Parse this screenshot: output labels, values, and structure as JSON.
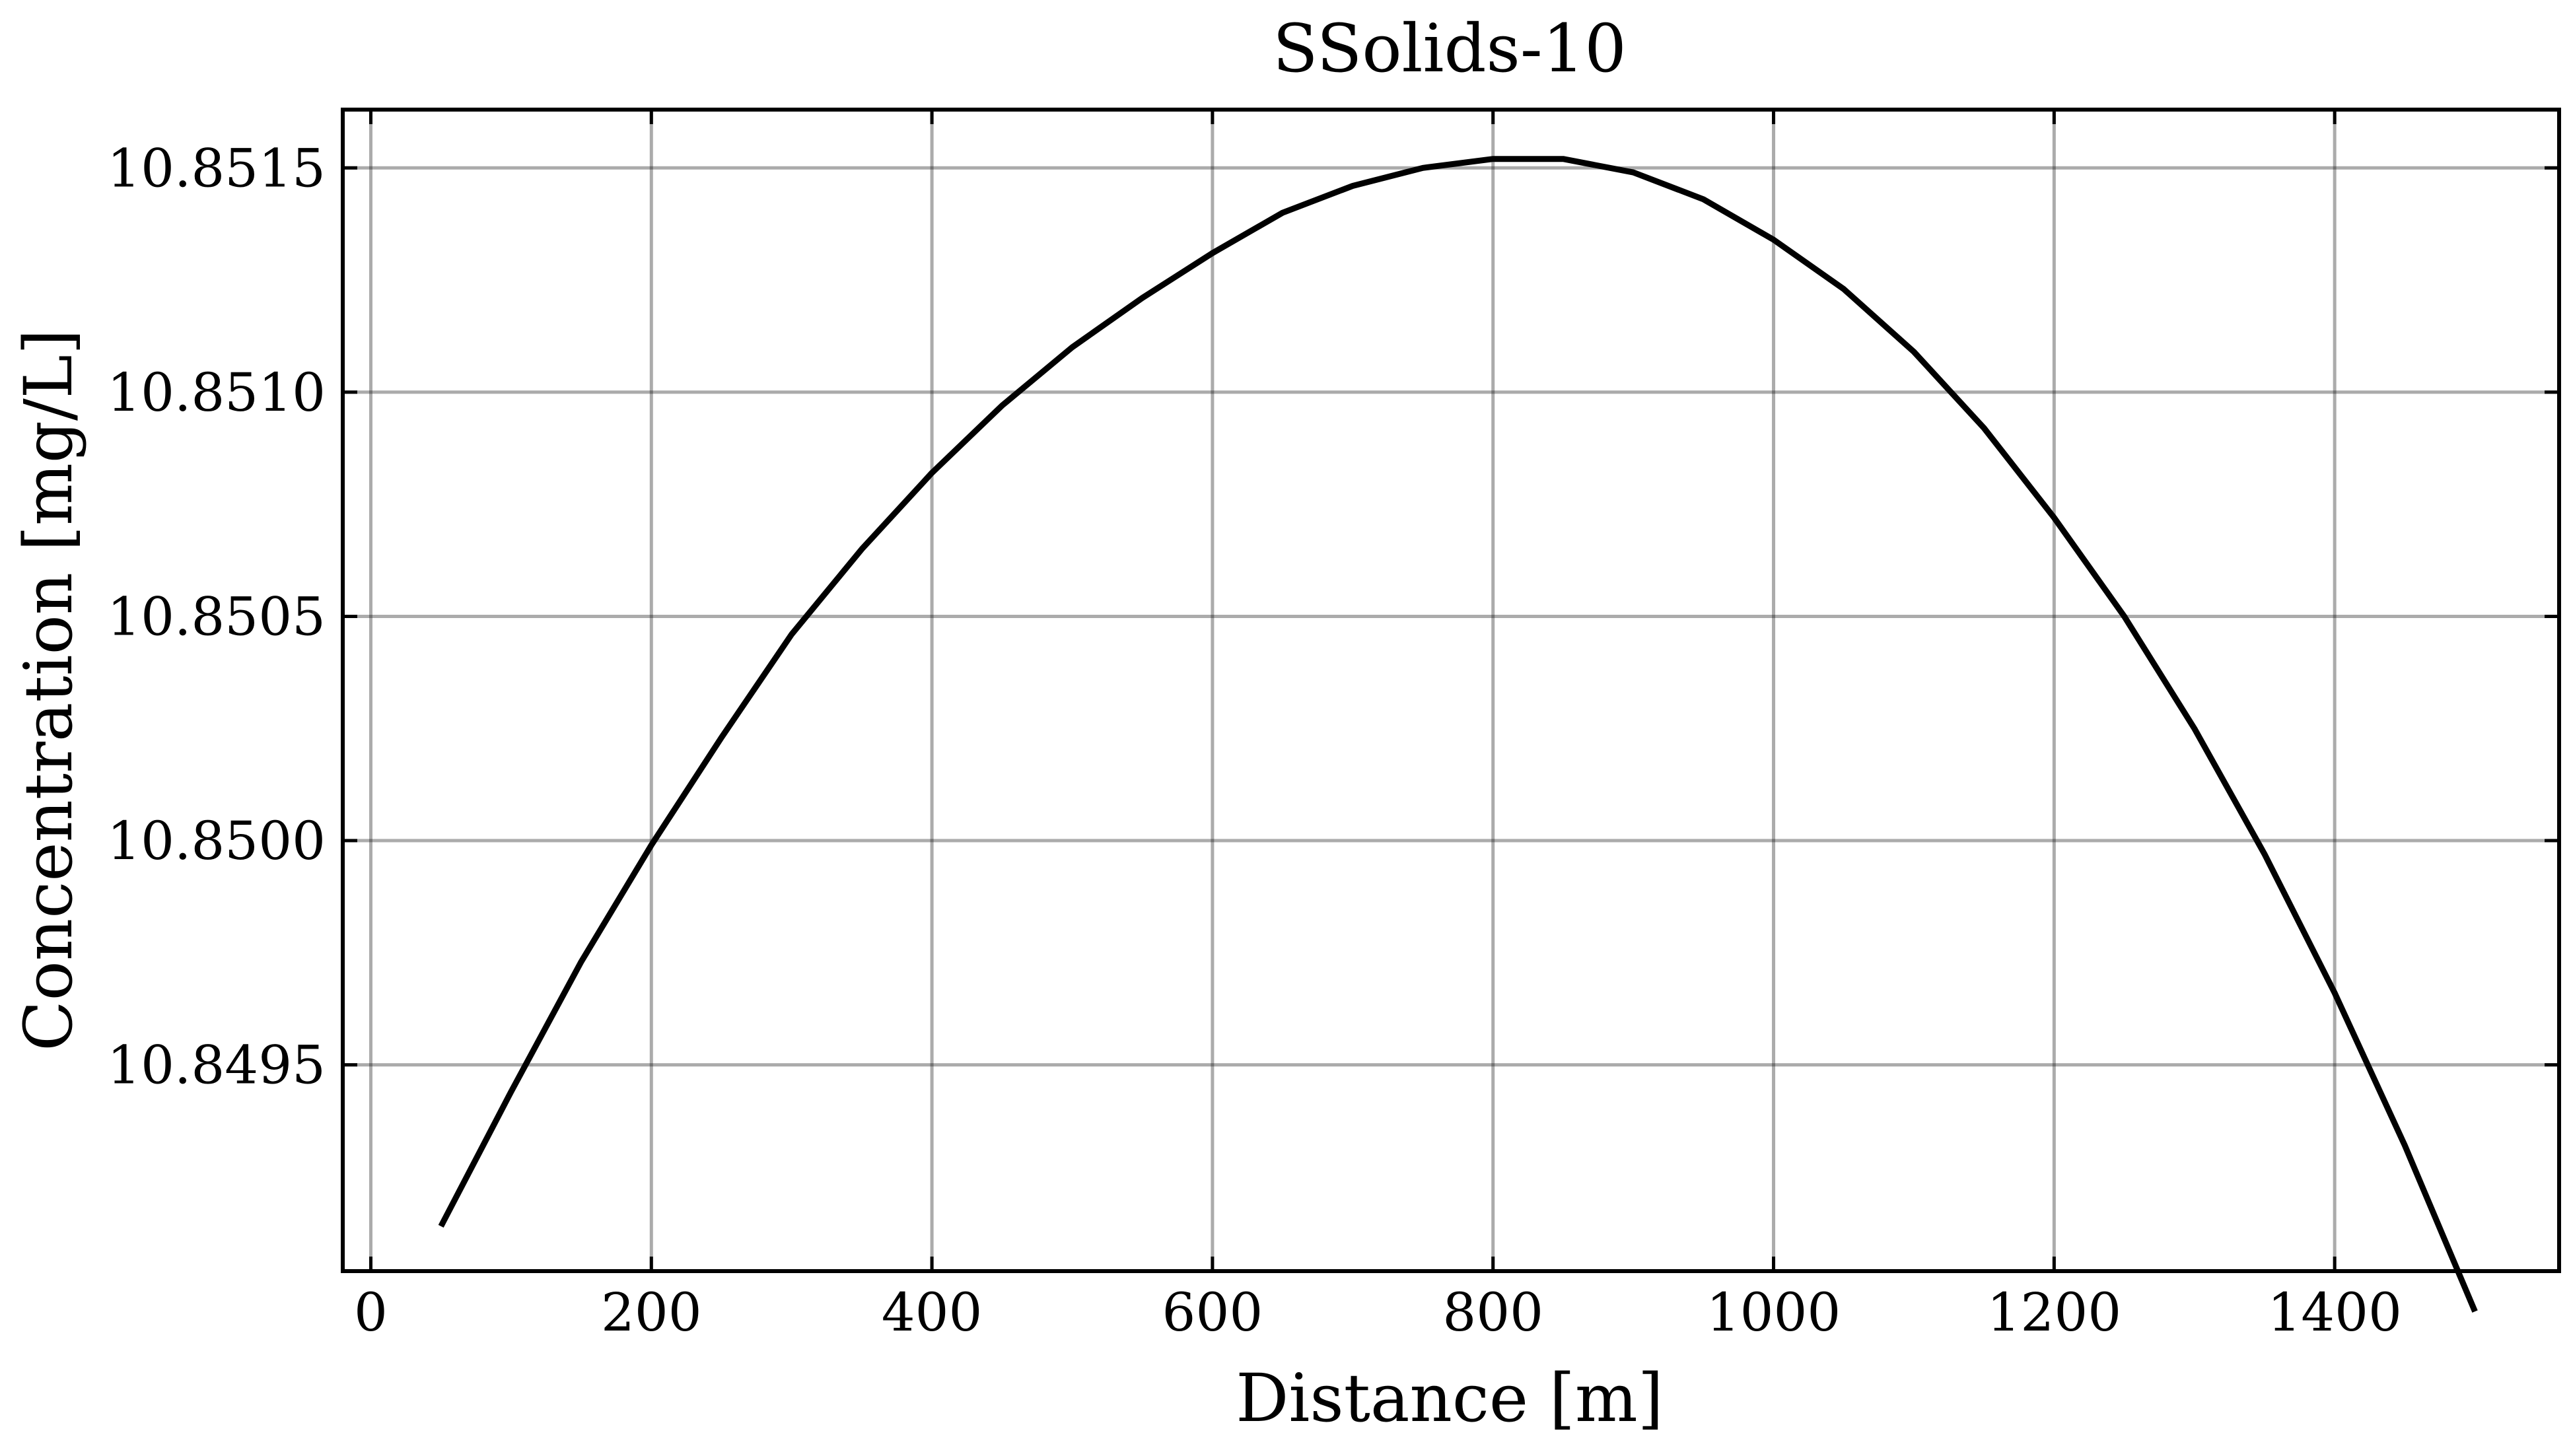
{
  "chart_data": {
    "type": "line",
    "title": "SSolids-10",
    "xlabel": "Distance [m]",
    "ylabel": "Concentration [mg/L]",
    "xlim": [
      -20,
      1560
    ],
    "ylim": [
      10.84904,
      10.85163
    ],
    "grid": true,
    "x_ticks": [
      0,
      200,
      400,
      600,
      800,
      1000,
      1200,
      1400
    ],
    "x_tick_labels": [
      "0",
      "200",
      "400",
      "600",
      "800",
      "1000",
      "1200",
      "1400"
    ],
    "y_ticks": [
      10.8495,
      10.85,
      10.8505,
      10.851,
      10.8515
    ],
    "y_tick_labels": [
      "10.8495",
      "10.8500",
      "10.8505",
      "10.8510",
      "10.8515"
    ],
    "series": [
      {
        "color": "#000000",
        "x": [
          50,
          100,
          150,
          200,
          250,
          300,
          350,
          400,
          450,
          500,
          550,
          600,
          650,
          700,
          750,
          800,
          850,
          900,
          950,
          1000,
          1050,
          1100,
          1150,
          1200,
          1250,
          1300,
          1350,
          1400,
          1450,
          1500
        ],
        "y": [
          10.84914,
          10.84944,
          10.84973,
          10.84999,
          10.85023,
          10.85046,
          10.85065,
          10.85082,
          10.85097,
          10.8511,
          10.85121,
          10.85131,
          10.8514,
          10.85146,
          10.8515,
          10.85152,
          10.85152,
          10.85149,
          10.85143,
          10.85134,
          10.85123,
          10.85109,
          10.85092,
          10.85072,
          10.8505,
          10.85025,
          10.84997,
          10.84966,
          10.84932,
          10.84895
        ]
      }
    ]
  }
}
